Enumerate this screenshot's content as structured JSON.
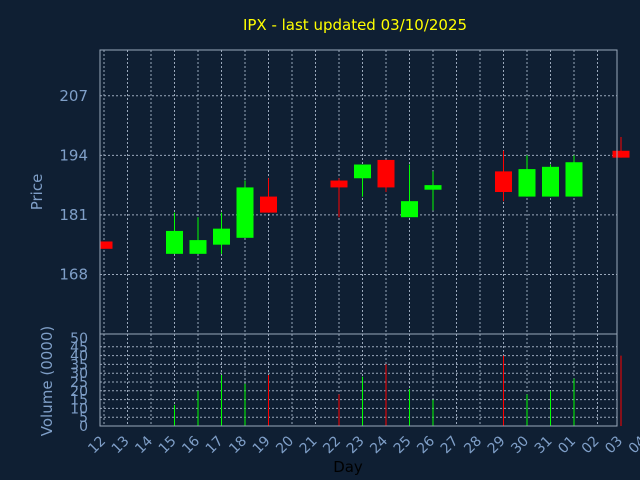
{
  "title": "IPX - last updated 03/10/2025",
  "chart_data": [
    {
      "type": "candlestick",
      "ylabel": "Price",
      "ylim": [
        155,
        217
      ],
      "yticks": [
        168,
        181,
        194,
        207
      ],
      "grid": true,
      "colors": {
        "up": "#00ff00",
        "down": "#ff0000",
        "background": "#0f1f33",
        "text": "#7f9fc8",
        "title": "#ffff00"
      },
      "candles": [
        {
          "day": "12",
          "open": 175.2,
          "high": 175.2,
          "low": 173.6,
          "close": 173.6
        },
        {
          "day": "15",
          "open": 172.5,
          "high": 181.5,
          "low": 172.5,
          "close": 177.5
        },
        {
          "day": "16",
          "open": 172.5,
          "high": 180.5,
          "low": 172.5,
          "close": 175.5
        },
        {
          "day": "17",
          "open": 174.5,
          "high": 181.5,
          "low": 172.5,
          "close": 178.0
        },
        {
          "day": "18",
          "open": 176.0,
          "high": 188.5,
          "low": 176.0,
          "close": 187.0
        },
        {
          "day": "19",
          "open": 185.0,
          "high": 189.0,
          "low": 181.5,
          "close": 181.5
        },
        {
          "day": "22",
          "open": 188.5,
          "high": 189.0,
          "low": 180.5,
          "close": 187.0
        },
        {
          "day": "23",
          "open": 189.0,
          "high": 192.0,
          "low": 185.0,
          "close": 192.0
        },
        {
          "day": "24",
          "open": 193.0,
          "high": 193.0,
          "low": 186.0,
          "close": 187.0
        },
        {
          "day": "25",
          "open": 180.5,
          "high": 192.0,
          "low": 180.5,
          "close": 184.0
        },
        {
          "day": "26",
          "open": 186.5,
          "high": 190.5,
          "low": 182.0,
          "close": 187.5
        },
        {
          "day": "29",
          "open": 190.5,
          "high": 195.0,
          "low": 184.0,
          "close": 186.0
        },
        {
          "day": "30",
          "open": 185.0,
          "high": 194.0,
          "low": 185.0,
          "close": 191.0
        },
        {
          "day": "31",
          "open": 185.0,
          "high": 192.0,
          "low": 185.0,
          "close": 191.5
        },
        {
          "day": "01",
          "open": 185.0,
          "high": 194.0,
          "low": 185.0,
          "close": 192.5
        },
        {
          "day": "03",
          "open": 195.0,
          "high": 198.0,
          "low": 193.5,
          "close": 193.5
        }
      ]
    },
    {
      "type": "bar",
      "ylabel": "Volume (0000)",
      "ylim": [
        0,
        50
      ],
      "yticks": [
        0,
        5,
        10,
        15,
        20,
        25,
        30,
        35,
        40,
        45,
        50
      ],
      "grid": true,
      "bars": [
        {
          "day": "15",
          "value": 12,
          "color": "#00ff00"
        },
        {
          "day": "16",
          "value": 20,
          "color": "#00ff00"
        },
        {
          "day": "17",
          "value": 29,
          "color": "#00ff00"
        },
        {
          "day": "18",
          "value": 24,
          "color": "#00ff00"
        },
        {
          "day": "19",
          "value": 29,
          "color": "#ff0000"
        },
        {
          "day": "22",
          "value": 18,
          "color": "#ff0000"
        },
        {
          "day": "23",
          "value": 28,
          "color": "#00ff00"
        },
        {
          "day": "24",
          "value": 35,
          "color": "#ff0000"
        },
        {
          "day": "25",
          "value": 21,
          "color": "#00ff00"
        },
        {
          "day": "26",
          "value": 15,
          "color": "#00ff00"
        },
        {
          "day": "29",
          "value": 40,
          "color": "#ff0000"
        },
        {
          "day": "30",
          "value": 18,
          "color": "#00ff00"
        },
        {
          "day": "31",
          "value": 20,
          "color": "#00ff00"
        },
        {
          "day": "01",
          "value": 27,
          "color": "#00ff00"
        },
        {
          "day": "03",
          "value": 40,
          "color": "#ff0000"
        }
      ]
    }
  ],
  "x_axis": {
    "label": "Day",
    "ticks": [
      "12",
      "13",
      "14",
      "15",
      "16",
      "17",
      "18",
      "19",
      "20",
      "21",
      "22",
      "23",
      "24",
      "25",
      "26",
      "27",
      "28",
      "29",
      "30",
      "31",
      "01",
      "02",
      "03",
      "04"
    ]
  }
}
